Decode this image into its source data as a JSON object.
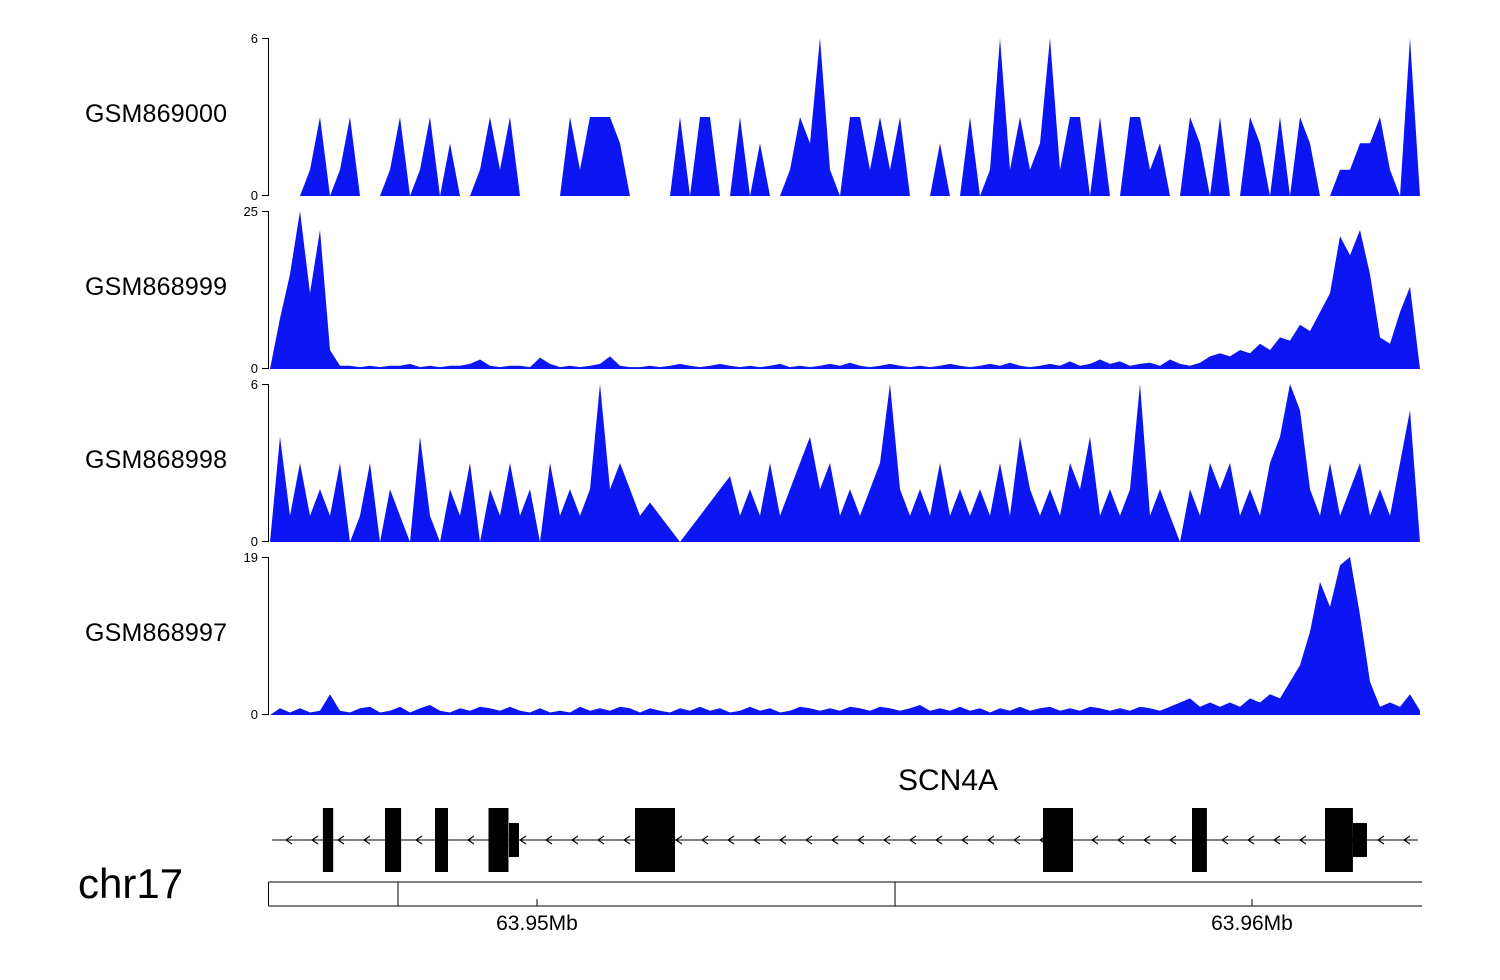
{
  "colors": {
    "signal": "#0b16f2",
    "ink": "#000000"
  },
  "chart_data": {
    "type": "area",
    "description": "Genome browser coverage tracks over the SCN4A locus",
    "x_axis": {
      "unit": "Mb",
      "range_mb": [
        63.946,
        63.9625
      ],
      "tick_labels": [
        "63.95Mb",
        "63.96Mb"
      ]
    },
    "tracks": [
      {
        "name": "GSM869000",
        "ymax": 6,
        "ymax_label": "6",
        "ymin_label": "0",
        "values": [
          0,
          0,
          0,
          0,
          1,
          3,
          0,
          1,
          3,
          0,
          0,
          0,
          1,
          3,
          0,
          1,
          3,
          0,
          2,
          0,
          0,
          1,
          3,
          1,
          3,
          0,
          0,
          0,
          0,
          0,
          3,
          1,
          3,
          3,
          3,
          2,
          0,
          0,
          0,
          0,
          0,
          3,
          0,
          3,
          3,
          0,
          0,
          3,
          0,
          2,
          0,
          0,
          1,
          3,
          2,
          6,
          1,
          0,
          3,
          3,
          1,
          3,
          1,
          3,
          0,
          0,
          0,
          2,
          0,
          0,
          3,
          0,
          1,
          6,
          1,
          3,
          1,
          2,
          6,
          1,
          3,
          3,
          0,
          3,
          0,
          0,
          3,
          3,
          1,
          2,
          0,
          0,
          3,
          2,
          0,
          3,
          0,
          0,
          3,
          2,
          0,
          3,
          0,
          3,
          2,
          0,
          0,
          1,
          1,
          2,
          2,
          3,
          1,
          0,
          6,
          0
        ]
      },
      {
        "name": "GSM868999",
        "ymax": 25,
        "ymax_label": "25",
        "ymin_label": "0",
        "values": [
          0,
          8,
          15,
          25,
          12,
          22,
          3,
          0.5,
          0.5,
          0.3,
          0.5,
          0.3,
          0.5,
          0.5,
          0.8,
          0.3,
          0.5,
          0.3,
          0.5,
          0.5,
          0.8,
          1.5,
          0.5,
          0.3,
          0.5,
          0.5,
          0.3,
          1.8,
          0.8,
          0.3,
          0.5,
          0.3,
          0.5,
          0.8,
          2,
          0.5,
          0.3,
          0.3,
          0.5,
          0.3,
          0.5,
          0.8,
          0.5,
          0.3,
          0.5,
          0.8,
          0.5,
          0.3,
          0.5,
          0.3,
          0.5,
          0.8,
          0.3,
          0.5,
          0.3,
          0.5,
          0.8,
          0.5,
          1,
          0.5,
          0.3,
          0.5,
          0.8,
          0.5,
          0.3,
          0.5,
          0.3,
          0.5,
          0.8,
          0.5,
          0.3,
          0.5,
          0.8,
          0.5,
          1,
          0.5,
          0.3,
          0.5,
          0.8,
          0.5,
          1.2,
          0.5,
          0.8,
          1.5,
          0.8,
          1.2,
          0.5,
          0.8,
          1,
          0.5,
          1.5,
          0.8,
          0.5,
          1,
          2,
          2.5,
          2,
          3,
          2.5,
          4,
          3,
          5,
          4.5,
          7,
          6,
          9,
          12,
          21,
          18,
          22,
          15,
          5,
          4,
          9,
          13,
          0
        ]
      },
      {
        "name": "GSM868998",
        "ymax": 6,
        "ymax_label": "6",
        "ymin_label": "0",
        "values": [
          0,
          4,
          1,
          3,
          1,
          2,
          1,
          3,
          0,
          1,
          3,
          0,
          2,
          1,
          0,
          4,
          1,
          0,
          2,
          1,
          3,
          0,
          2,
          1,
          3,
          1,
          2,
          0,
          3,
          1,
          2,
          1,
          2,
          6,
          2,
          3,
          2,
          1,
          1.5,
          1,
          0.5,
          0,
          0.5,
          1,
          1.5,
          2,
          2.5,
          1,
          2,
          1,
          3,
          1,
          2,
          3,
          4,
          2,
          3,
          1,
          2,
          1,
          2,
          3,
          6,
          2,
          1,
          2,
          1,
          3,
          1,
          2,
          1,
          2,
          1,
          3,
          1,
          4,
          2,
          1,
          2,
          1,
          3,
          2,
          4,
          1,
          2,
          1,
          2,
          6,
          1,
          2,
          1,
          0,
          2,
          1,
          3,
          2,
          3,
          1,
          2,
          1,
          3,
          4,
          6,
          5,
          2,
          1,
          3,
          1,
          2,
          3,
          1,
          2,
          1,
          3,
          5,
          0
        ]
      },
      {
        "name": "GSM868997",
        "ymax": 19,
        "ymax_label": "19",
        "ymin_label": "0",
        "values": [
          0,
          0.8,
          0.3,
          0.8,
          0.3,
          0.5,
          2.5,
          0.5,
          0.3,
          0.8,
          1,
          0.3,
          0.5,
          1,
          0.3,
          0.8,
          1.2,
          0.5,
          0.3,
          0.8,
          0.5,
          1,
          0.8,
          0.5,
          1,
          0.5,
          0.3,
          0.8,
          0.3,
          0.5,
          0.3,
          1,
          0.5,
          0.8,
          0.5,
          1,
          0.8,
          0.3,
          0.8,
          0.5,
          0.3,
          0.8,
          0.5,
          1,
          0.5,
          0.8,
          0.3,
          0.5,
          1,
          0.5,
          0.8,
          0.3,
          0.5,
          1,
          0.8,
          0.5,
          0.8,
          0.5,
          1,
          0.8,
          0.5,
          1,
          0.8,
          0.5,
          0.8,
          1.2,
          0.5,
          0.8,
          0.5,
          1,
          0.5,
          0.8,
          0.3,
          0.8,
          0.5,
          1,
          0.5,
          0.8,
          1,
          0.5,
          0.8,
          0.5,
          1,
          0.8,
          0.5,
          0.8,
          0.5,
          1,
          0.8,
          0.5,
          1,
          1.5,
          2,
          1,
          1.5,
          1,
          1.5,
          1,
          2,
          1.5,
          2.5,
          2,
          4,
          6,
          10,
          16,
          13,
          18,
          19,
          12,
          4,
          1,
          1.5,
          1,
          2.5,
          0.5
        ]
      }
    ],
    "gene": {
      "name": "SCN4A",
      "chromosome": "chr17",
      "strand": "-",
      "exons": [
        {
          "x": 0.046,
          "w": 0.009,
          "type": "tall"
        },
        {
          "x": 0.1,
          "w": 0.014,
          "type": "tall"
        },
        {
          "x": 0.1435,
          "w": 0.0113,
          "type": "tall"
        },
        {
          "x": 0.19,
          "w": 0.0174,
          "type": "tall"
        },
        {
          "x": 0.2078,
          "w": 0.0087,
          "type": "short"
        },
        {
          "x": 0.3174,
          "w": 0.0348,
          "type": "tall"
        },
        {
          "x": 0.6722,
          "w": 0.0261,
          "type": "tall"
        },
        {
          "x": 0.8017,
          "w": 0.013,
          "type": "tall"
        },
        {
          "x": 0.9174,
          "w": 0.0243,
          "type": "tall"
        },
        {
          "x": 0.9417,
          "w": 0.0122,
          "type": "short"
        }
      ]
    },
    "ruler": {
      "ticks": [
        {
          "x": 0.1113,
          "label": ""
        },
        {
          "x": 0.2322,
          "label": "63.95Mb"
        },
        {
          "x": 0.5435,
          "label": ""
        },
        {
          "x": 0.8539,
          "label": "63.96Mb"
        }
      ]
    }
  }
}
